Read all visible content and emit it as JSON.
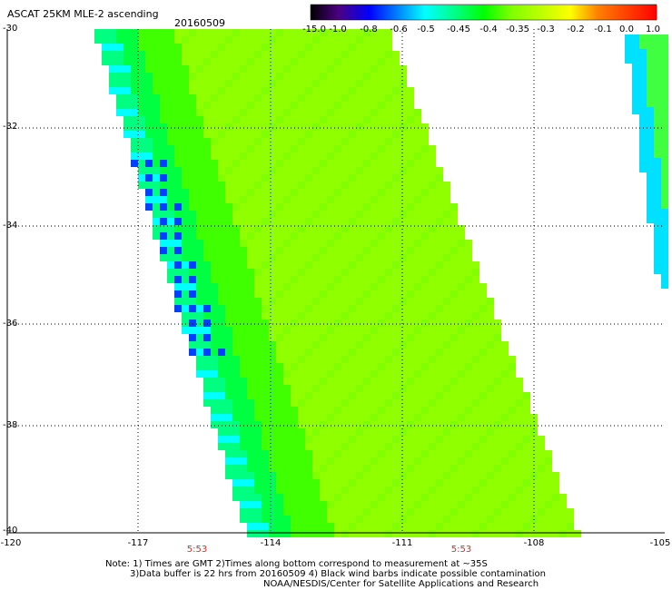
{
  "header": {
    "title": "ASCAT 25KM MLE-2 ascending",
    "date": "20160509"
  },
  "colorbar": {
    "labels": [
      "-15.0",
      "-1.0",
      "-0.8",
      "-0.6",
      "-0.5",
      "-0.45",
      "-0.4",
      "-0.35",
      "-0.3",
      "-0.2",
      "-0.1",
      "0.0",
      "1.0"
    ],
    "colors": [
      "#000000",
      "#4b0082",
      "#0000ff",
      "#0080ff",
      "#00ffff",
      "#00ff80",
      "#00ff00",
      "#80ff00",
      "#c0ff00",
      "#ffff00",
      "#ff8000",
      "#ff0000"
    ]
  },
  "axes": {
    "lat_labels": [
      "-30",
      "-32",
      "-34",
      "-36",
      "-38",
      "-40"
    ],
    "lon_labels": [
      "-120",
      "-117",
      "-114",
      "-111",
      "-108",
      "-105"
    ],
    "lat_range": [
      -30,
      -40
    ],
    "lon_range": [
      -120,
      -105
    ]
  },
  "times": [
    "5:53",
    "5:53"
  ],
  "notes": [
    "Note: 1) Times are GMT 2)Times along bottom correspond to measurement at ~35S",
    "3)Data buffer is 22 hrs from 20160509 4) Black wind barbs indicate possible contamination",
    "NOAA/NESDIS/Center for Satellite Applications and Research"
  ]
}
